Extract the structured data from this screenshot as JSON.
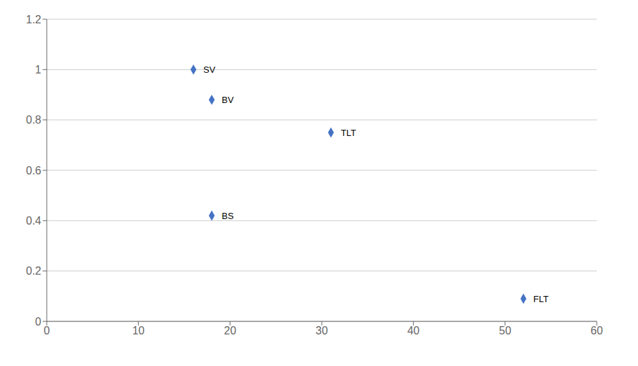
{
  "chart_data": {
    "type": "scatter",
    "x": [
      16,
      18,
      31,
      18,
      52
    ],
    "values": [
      1.0,
      0.88,
      0.75,
      0.42,
      0.09
    ],
    "labels": [
      "SV",
      "BV",
      "TLT",
      "BS",
      "FLT"
    ],
    "color": "#4472C4",
    "marker": "diamond",
    "xlim": [
      0,
      60
    ],
    "ylim": [
      0,
      1.2
    ],
    "xticks": [
      0,
      10,
      20,
      30,
      40,
      50,
      60
    ],
    "yticks": [
      0,
      0.2,
      0.4,
      0.6,
      0.8,
      1.0,
      1.2
    ],
    "grid": "y",
    "data_labels": true
  }
}
